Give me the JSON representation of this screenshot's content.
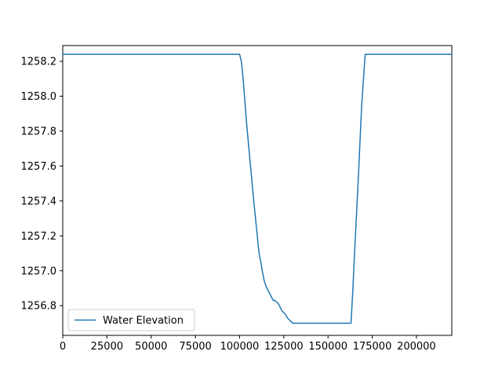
{
  "chart_data": {
    "type": "line",
    "title": "",
    "xlabel": "",
    "ylabel": "",
    "xlim": [
      0,
      220000
    ],
    "ylim": [
      1256.63,
      1258.29
    ],
    "xticks": [
      0,
      25000,
      50000,
      75000,
      100000,
      125000,
      150000,
      175000,
      200000
    ],
    "yticks": [
      1256.8,
      1257.0,
      1257.2,
      1257.4,
      1257.6,
      1257.8,
      1258.0,
      1258.2
    ],
    "ytick_labels": [
      "1256.8",
      "1257.0",
      "1257.2",
      "1257.4",
      "1257.6",
      "1257.8",
      "1258.0",
      "1258.2"
    ],
    "grid": false,
    "legend": {
      "position": "lower-left"
    },
    "series": [
      {
        "name": "Water Elevation",
        "color": "#1f77b4",
        "x": [
          0,
          50000,
          100000,
          101000,
          102000,
          104000,
          106000,
          108000,
          110000,
          111000,
          112000,
          113000,
          114000,
          115000,
          116000,
          117000,
          118000,
          119000,
          120000,
          121000,
          122000,
          123000,
          124000,
          125000,
          126000,
          127000,
          128000,
          129000,
          130000,
          131000,
          135000,
          140000,
          150000,
          160000,
          163000,
          164000,
          165000,
          167000,
          169000,
          171000,
          172000,
          180000,
          200000,
          220000
        ],
        "y": [
          1258.24,
          1258.24,
          1258.24,
          1258.2,
          1258.1,
          1257.84,
          1257.62,
          1257.4,
          1257.2,
          1257.1,
          1257.05,
          1256.99,
          1256.94,
          1256.91,
          1256.89,
          1256.87,
          1256.85,
          1256.83,
          1256.83,
          1256.82,
          1256.81,
          1256.79,
          1256.77,
          1256.76,
          1256.75,
          1256.73,
          1256.72,
          1256.71,
          1256.7,
          1256.7,
          1256.7,
          1256.7,
          1256.7,
          1256.7,
          1256.7,
          1256.88,
          1257.1,
          1257.5,
          1257.94,
          1258.24,
          1258.24,
          1258.24,
          1258.24,
          1258.24
        ]
      }
    ]
  }
}
